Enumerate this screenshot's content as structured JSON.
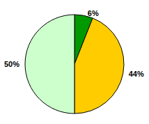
{
  "chart_data": {
    "type": "pie",
    "values": [
      6,
      44,
      50
    ],
    "value_labels": [
      "6%",
      "44%",
      "50%"
    ],
    "colors": [
      "#009900",
      "#ffcc00",
      "#ccffcc"
    ],
    "data_labels": true
  }
}
